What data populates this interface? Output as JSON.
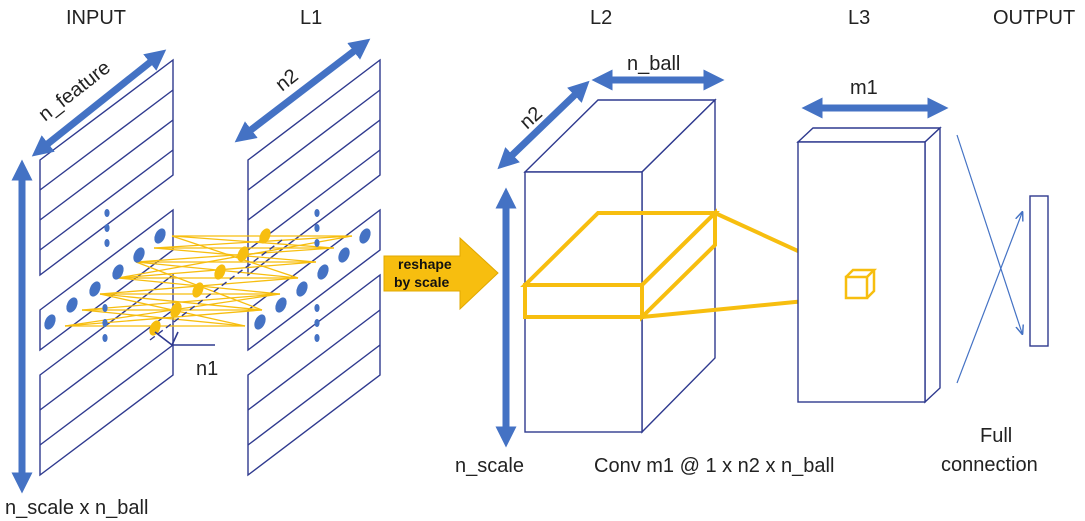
{
  "colors": {
    "blue_arrow": "#4472C4",
    "outline": "#2F3A8F",
    "yellow": "#F7BE0F",
    "node": "#4472C4",
    "text": "#222222"
  },
  "labels": {
    "input": "INPUT",
    "l1": "L1",
    "l2": "L2",
    "l3": "L3",
    "output": "OUTPUT",
    "n_feature": "n_feature",
    "n2_l1": "n2",
    "n2_l2": "n2",
    "n_ball": "n_ball",
    "m1": "m1",
    "n1": "n1",
    "n_scale_x_n_ball": "n_scale x n_ball",
    "n_scale": "n_scale",
    "conv": "Conv m1 @ 1 x n2 x n_ball",
    "full_line1": "Full",
    "full_line2": "connection",
    "reshape_line1": "reshape",
    "reshape_line2": "by scale"
  }
}
